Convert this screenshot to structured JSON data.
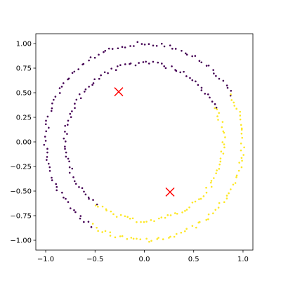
{
  "chart_data": {
    "type": "scatter",
    "title": "",
    "xlabel": "",
    "ylabel": "",
    "xlim": [
      -1.1,
      1.1
    ],
    "ylim": [
      -1.1,
      1.1
    ],
    "grid": false,
    "legend": "none",
    "x_ticks": [
      "−1.0",
      "−0.5",
      "0.0",
      "0.5",
      "1.0"
    ],
    "x_tick_values": [
      -1.0,
      -0.5,
      0.0,
      0.5,
      1.0
    ],
    "y_ticks": [
      "−1.00",
      "−0.75",
      "−0.50",
      "−0.25",
      "0.00",
      "0.25",
      "0.50",
      "0.75",
      "1.00"
    ],
    "y_tick_values": [
      -1.0,
      -0.75,
      -0.5,
      -0.25,
      0.0,
      0.25,
      0.5,
      0.75,
      1.0
    ],
    "clusters": [
      {
        "color": "#440154",
        "description": "points on the circles with angle roughly 26° to 238° (upper-left arc)",
        "rings": [
          {
            "radius": 1.0,
            "angle_start_deg": 28,
            "angle_end_deg": 238,
            "count": 90
          },
          {
            "radius": 0.8,
            "angle_start_deg": 26,
            "angle_end_deg": 232,
            "count": 80
          }
        ]
      },
      {
        "color": "#fde725",
        "description": "points on the circles with angle roughly 238° to 386° (lower-right arc)",
        "rings": [
          {
            "radius": 1.0,
            "angle_start_deg": 238,
            "angle_end_deg": 388,
            "count": 70
          },
          {
            "radius": 0.8,
            "angle_start_deg": 232,
            "angle_end_deg": 386,
            "count": 62
          }
        ]
      }
    ],
    "centroids": [
      {
        "x": -0.26,
        "y": 0.51,
        "color": "#ff0000",
        "marker": "x"
      },
      {
        "x": 0.26,
        "y": -0.51,
        "color": "#ff0000",
        "marker": "x"
      }
    ]
  }
}
